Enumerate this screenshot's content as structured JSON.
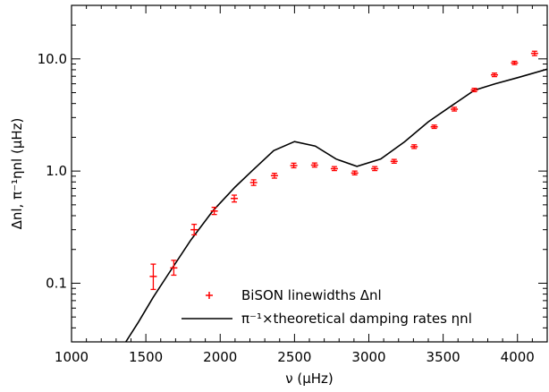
{
  "chart_data": {
    "type": "scatter",
    "title": "",
    "xlabel": "ν (μHz)",
    "ylabel": "Δnl, π⁻¹ηnl (μHz)",
    "xlim": [
      1000,
      4200
    ],
    "ylim": [
      0.03,
      30
    ],
    "yscale": "log",
    "x_ticks": [
      1000,
      1500,
      2000,
      2500,
      3000,
      3500,
      4000
    ],
    "y_ticks": [
      0.1,
      1.0,
      10.0
    ],
    "y_tick_labels": [
      "0.1",
      "1.0",
      "10.0"
    ],
    "grid": false,
    "legend_position": "bottom-right",
    "colors": {
      "points": "#ff0000",
      "line": "#000000"
    },
    "series": [
      {
        "name": "BiSON linewidths Δnl",
        "kind": "points-with-errorbars",
        "x": [
          1550,
          1688,
          1825,
          1960,
          2095,
          2225,
          2365,
          2495,
          2635,
          2768,
          2905,
          3040,
          3170,
          3305,
          3440,
          3575,
          3710,
          3845,
          3980,
          4115
        ],
        "y": [
          0.115,
          0.137,
          0.3,
          0.44,
          0.57,
          0.79,
          0.91,
          1.12,
          1.13,
          1.05,
          0.96,
          1.05,
          1.22,
          1.65,
          2.48,
          3.56,
          5.28,
          7.2,
          9.2,
          11.2
        ],
        "yerr_low": [
          0.088,
          0.118,
          0.27,
          0.41,
          0.53,
          0.745,
          0.865,
          1.07,
          1.085,
          1.01,
          0.925,
          1.01,
          1.175,
          1.59,
          2.4,
          3.43,
          5.1,
          6.95,
          8.9,
          10.7
        ],
        "yerr_high": [
          0.148,
          0.16,
          0.335,
          0.475,
          0.61,
          0.835,
          0.955,
          1.175,
          1.18,
          1.095,
          1.0,
          1.095,
          1.27,
          1.715,
          2.57,
          3.7,
          5.47,
          7.47,
          9.52,
          11.7
        ]
      },
      {
        "name": "π⁻¹×theoretical damping rates ηnl",
        "kind": "line",
        "x": [
          1365,
          1450,
          1550,
          1650,
          1800,
          1950,
          2100,
          2220,
          2360,
          2500,
          2640,
          2780,
          2920,
          3080,
          3240,
          3400,
          3560,
          3710,
          3850,
          4000,
          4200
        ],
        "y": [
          0.03,
          0.045,
          0.075,
          0.12,
          0.24,
          0.44,
          0.72,
          1.02,
          1.52,
          1.83,
          1.67,
          1.28,
          1.1,
          1.28,
          1.82,
          2.75,
          3.85,
          5.25,
          6.0,
          6.8,
          8.1
        ]
      }
    ]
  }
}
